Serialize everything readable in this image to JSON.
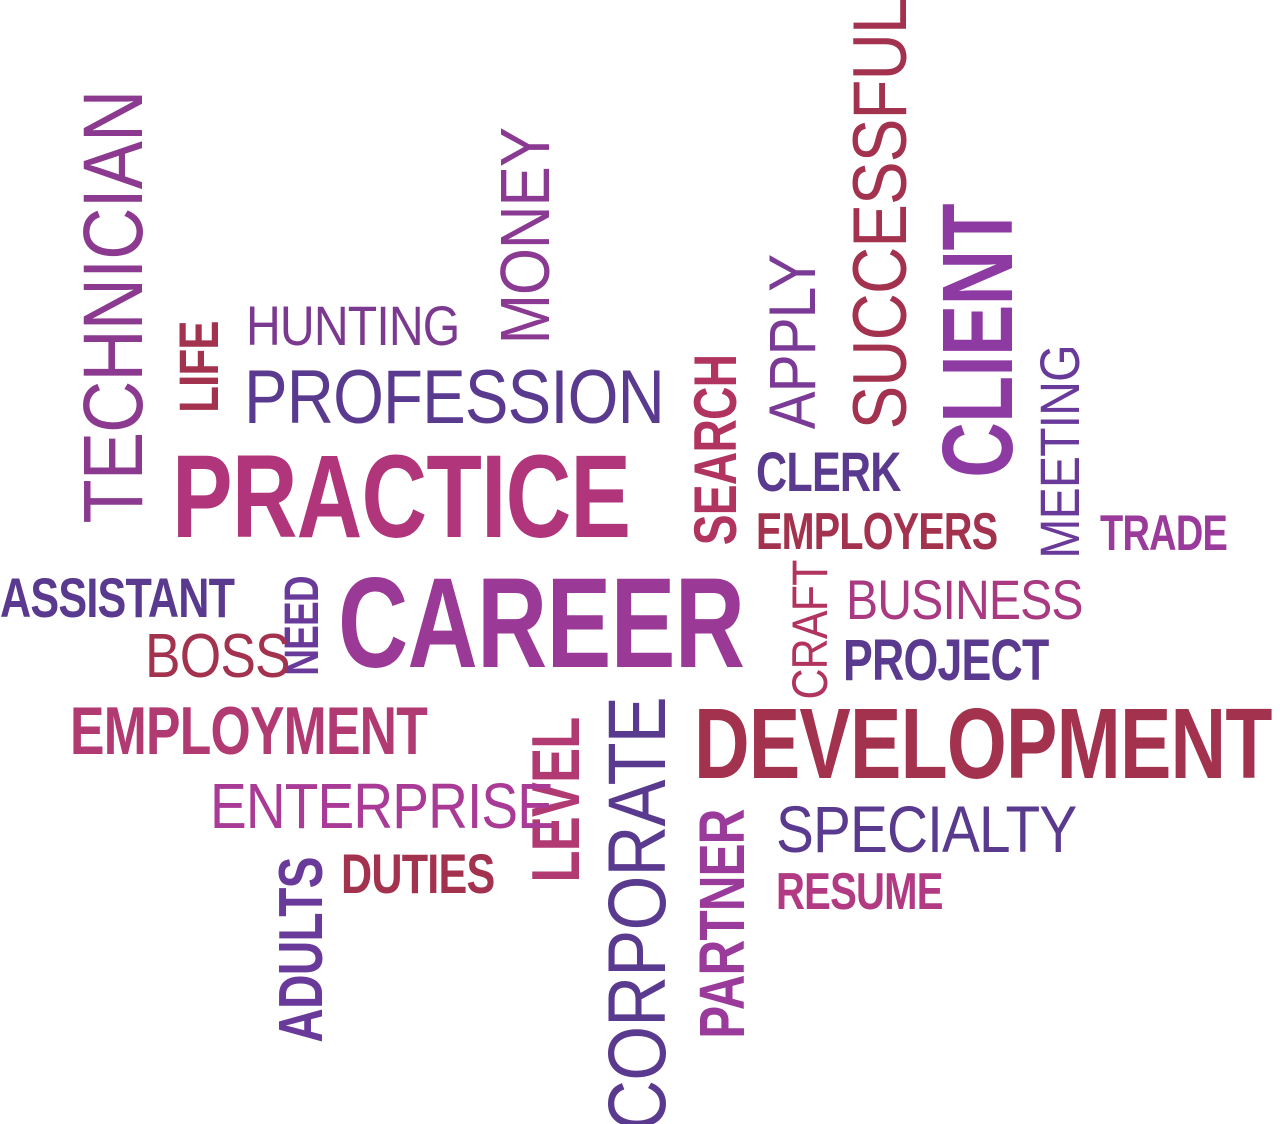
{
  "words": [
    {
      "text": "TECHNICIAN",
      "color": "#8b3a8f",
      "weight": "regular",
      "orientation": "vertical"
    },
    {
      "text": "LIFE",
      "color": "#a3324f",
      "weight": "bold",
      "orientation": "vertical"
    },
    {
      "text": "HUNTING",
      "color": "#7b3a8f",
      "weight": "regular",
      "orientation": "horizontal"
    },
    {
      "text": "MONEY",
      "color": "#8a3a92",
      "weight": "regular",
      "orientation": "vertical"
    },
    {
      "text": "PROFESSION",
      "color": "#5a3a8f",
      "weight": "regular",
      "orientation": "horizontal"
    },
    {
      "text": "PRACTICE",
      "color": "#b0357a",
      "weight": "bold",
      "orientation": "horizontal"
    },
    {
      "text": "SEARCH",
      "color": "#b13460",
      "weight": "bold",
      "orientation": "vertical"
    },
    {
      "text": "APPLY",
      "color": "#7a3a96",
      "weight": "regular",
      "orientation": "vertical"
    },
    {
      "text": "SUCCESSFUL",
      "color": "#a3324f",
      "weight": "regular",
      "orientation": "vertical"
    },
    {
      "text": "CLIENT",
      "color": "#8e3aa3",
      "weight": "bold",
      "orientation": "vertical"
    },
    {
      "text": "CLERK",
      "color": "#5a3a8f",
      "weight": "bold",
      "orientation": "horizontal"
    },
    {
      "text": "MEETING",
      "color": "#6a3a9a",
      "weight": "regular",
      "orientation": "vertical"
    },
    {
      "text": "EMPLOYERS",
      "color": "#a3324f",
      "weight": "bold",
      "orientation": "horizontal"
    },
    {
      "text": "TRADE",
      "color": "#9a3a9a",
      "weight": "bold",
      "orientation": "horizontal"
    },
    {
      "text": "ASSISTANT",
      "color": "#5a3a8f",
      "weight": "bold",
      "orientation": "horizontal"
    },
    {
      "text": "NEED",
      "color": "#6a3a9a",
      "weight": "bold",
      "orientation": "vertical"
    },
    {
      "text": "CAREER",
      "color": "#9a3a96",
      "weight": "bold",
      "orientation": "horizontal"
    },
    {
      "text": "CRAFT",
      "color": "#b13460",
      "weight": "regular",
      "orientation": "vertical"
    },
    {
      "text": "BUSINESS",
      "color": "#a93a82",
      "weight": "regular",
      "orientation": "horizontal"
    },
    {
      "text": "BOSS",
      "color": "#a3324f",
      "weight": "regular",
      "orientation": "horizontal"
    },
    {
      "text": "PROJECT",
      "color": "#5a3a8f",
      "weight": "bold",
      "orientation": "horizontal"
    },
    {
      "text": "EMPLOYMENT",
      "color": "#b13a72",
      "weight": "bold",
      "orientation": "horizontal"
    },
    {
      "text": "LEVEL",
      "color": "#b13a72",
      "weight": "bold",
      "orientation": "vertical"
    },
    {
      "text": "CORPORATE",
      "color": "#5a3a8f",
      "weight": "regular",
      "orientation": "vertical"
    },
    {
      "text": "DEVELOPMENT",
      "color": "#a3324f",
      "weight": "bold",
      "orientation": "horizontal"
    },
    {
      "text": "ENTERPRISE",
      "color": "#a93a96",
      "weight": "regular",
      "orientation": "horizontal"
    },
    {
      "text": "PARTNER",
      "color": "#9a3a9a",
      "weight": "bold",
      "orientation": "vertical"
    },
    {
      "text": "SPECIALTY",
      "color": "#5a3a8f",
      "weight": "regular",
      "orientation": "horizontal"
    },
    {
      "text": "ADULTS",
      "color": "#6a3a9a",
      "weight": "bold",
      "orientation": "vertical"
    },
    {
      "text": "DUTIES",
      "color": "#a3324f",
      "weight": "bold",
      "orientation": "horizontal"
    },
    {
      "text": "RESUME",
      "color": "#b13a82",
      "weight": "bold",
      "orientation": "horizontal"
    }
  ]
}
